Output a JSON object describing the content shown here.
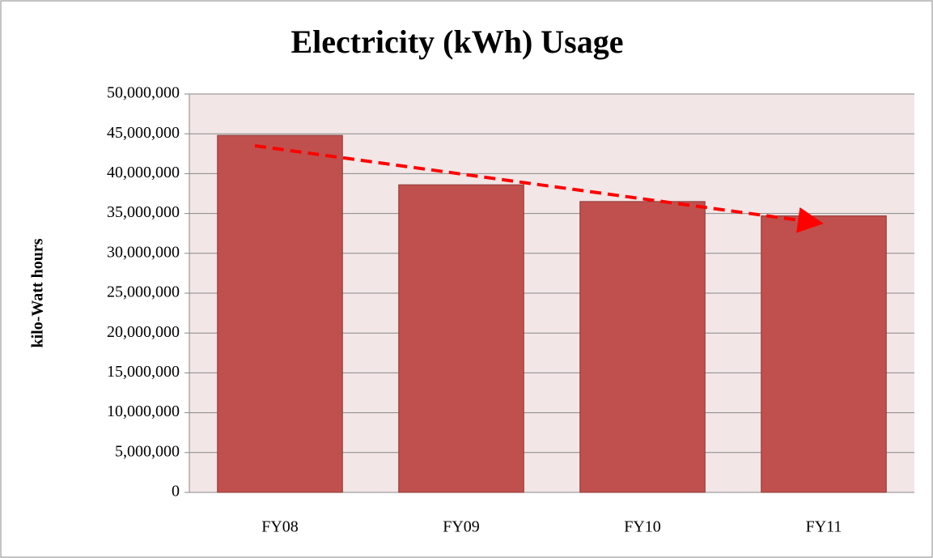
{
  "chart_data": {
    "type": "bar",
    "title": "Electricity (kWh) Usage",
    "y_label": "kilo-Watt hours",
    "categories": [
      "FY08",
      "FY09",
      "FY10",
      "FY11"
    ],
    "values": [
      44800000,
      38600000,
      36500000,
      34700000
    ],
    "color": "#c0504d",
    "ylim": [
      0,
      50000000
    ],
    "yticks": [
      0,
      {
        "value": 5000000,
        "label": "5,000,000"
      },
      {
        "value": 10000000,
        "label": "10,000,000"
      },
      {
        "value": 15000000,
        "label": "15,000,000"
      },
      {
        "value": 20000000,
        "label": "20,000,000"
      },
      {
        "value": 25000000,
        "label": "25,000,000"
      },
      {
        "value": 30000000,
        "label": "30,000,000"
      },
      {
        "value": 35000000,
        "label": "35,000,000"
      },
      {
        "value": 40000000,
        "label": "40,000,000"
      },
      {
        "value": 45000000,
        "label": "45,000,000"
      },
      {
        "value": 50000000,
        "label": "50,000,000"
      }
    ],
    "grid": true
  }
}
